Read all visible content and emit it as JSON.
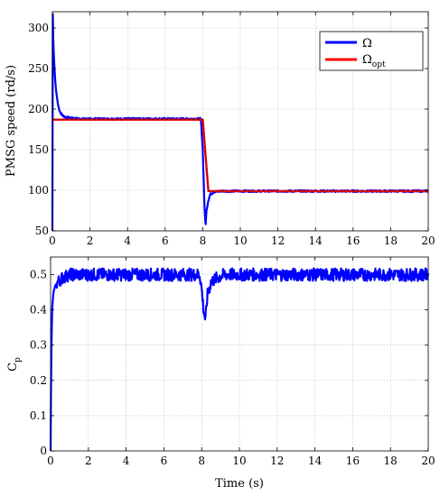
{
  "chart_data": [
    {
      "type": "line",
      "title": "",
      "xlabel": "",
      "ylabel": "PMSG speed (rd/s)",
      "xlim": [
        0,
        20
      ],
      "ylim": [
        50,
        320
      ],
      "xticks": [
        "0",
        "2",
        "4",
        "6",
        "8",
        "10",
        "12",
        "14",
        "16",
        "18",
        "20"
      ],
      "yticks": [
        "50",
        "100",
        "150",
        "200",
        "250",
        "300"
      ],
      "grid": true,
      "legend_placement": "top-right",
      "legend": {
        "omega": "Ω",
        "omega_opt_base": "Ω",
        "omega_opt_sub": "opt"
      },
      "series": [
        {
          "name": "Ω",
          "color": "#0000ff",
          "x": [
            0,
            0.02,
            0.05,
            0.1,
            0.15,
            0.2,
            0.3,
            0.4,
            0.5,
            0.7,
            1.0,
            1.5,
            2,
            4,
            6,
            7.9,
            8.0,
            8.1,
            8.15,
            8.2,
            8.3,
            8.4,
            8.6,
            9,
            10,
            12,
            14,
            16,
            18,
            20
          ],
          "y": [
            50,
            320,
            280,
            255,
            235,
            222,
            205,
            197,
            193,
            190,
            189,
            188,
            188,
            188,
            188,
            188,
            150,
            75,
            57,
            75,
            88,
            95,
            98,
            99,
            99,
            99,
            99,
            99,
            99,
            99
          ]
        },
        {
          "name": "Ω_opt",
          "color": "#ff0000",
          "x": [
            0,
            8.0,
            8.3,
            20
          ],
          "y": [
            187,
            187,
            99,
            99
          ]
        }
      ]
    },
    {
      "type": "line",
      "title": "",
      "xlabel": "Time (s)",
      "ylabel": "Cp",
      "ylabel_base": "C",
      "ylabel_sub": "p",
      "xlim": [
        0,
        20
      ],
      "ylim": [
        0,
        0.55
      ],
      "xticks": [
        "0",
        "2",
        "4",
        "6",
        "8",
        "10",
        "12",
        "14",
        "16",
        "18",
        "20"
      ],
      "yticks": [
        "0",
        "0.1",
        "0.2",
        "0.3",
        "0.4",
        "0.5"
      ],
      "grid": true,
      "series": [
        {
          "name": "",
          "color": "#0000ff",
          "x": [
            0,
            0.03,
            0.08,
            0.15,
            0.25,
            0.4,
            0.6,
            1.0,
            2,
            4,
            6,
            7.9,
            8.0,
            8.1,
            8.2,
            8.3,
            8.5,
            8.8,
            9.2,
            10,
            12,
            14,
            16,
            18,
            20
          ],
          "y": [
            0,
            0.24,
            0.4,
            0.45,
            0.47,
            0.48,
            0.49,
            0.5,
            0.5,
            0.5,
            0.5,
            0.5,
            0.46,
            0.4,
            0.37,
            0.44,
            0.48,
            0.49,
            0.5,
            0.5,
            0.5,
            0.5,
            0.5,
            0.5,
            0.5
          ]
        }
      ]
    }
  ]
}
